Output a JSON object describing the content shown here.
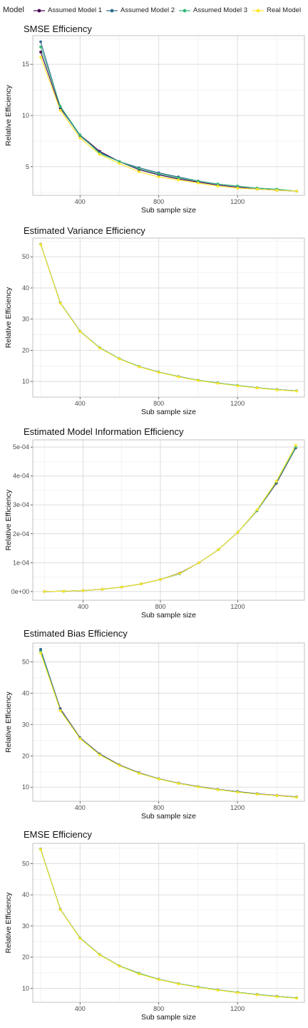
{
  "legend": {
    "title": "Model",
    "entries": [
      {
        "label": "Assumed Model 1",
        "color": "#440154"
      },
      {
        "label": "Assumed Model 2",
        "color": "#31688E"
      },
      {
        "label": "Assumed Model 3",
        "color": "#35B779"
      },
      {
        "label": "Real Model",
        "color": "#FDE725"
      }
    ]
  },
  "chart_data": [
    {
      "type": "line",
      "title": "SMSE Efficiency",
      "xlabel": "Sub sample size",
      "ylabel": "Relative Efficiency",
      "xlim": [
        160,
        1540
      ],
      "ylim": [
        2.2,
        17.8
      ],
      "xticks": [
        400,
        800,
        1200
      ],
      "yticks": [
        5,
        10,
        15
      ],
      "ytick_labels": [
        "5",
        "10",
        "15"
      ],
      "grid": true,
      "x": [
        200,
        300,
        400,
        500,
        600,
        700,
        800,
        900,
        1000,
        1100,
        1200,
        1300,
        1400,
        1500
      ],
      "series": [
        {
          "name": "Assumed Model 1",
          "values": [
            16.2,
            10.7,
            8.1,
            6.5,
            5.5,
            4.7,
            4.2,
            3.8,
            3.5,
            3.2,
            3.0,
            2.8,
            2.7,
            2.6
          ]
        },
        {
          "name": "Assumed Model 2",
          "values": [
            17.2,
            10.8,
            8.0,
            6.4,
            5.5,
            4.9,
            4.4,
            4.0,
            3.6,
            3.3,
            3.1,
            2.9,
            2.8,
            2.6
          ]
        },
        {
          "name": "Assumed Model 3",
          "values": [
            16.7,
            10.9,
            8.1,
            6.3,
            5.5,
            4.8,
            4.3,
            3.9,
            3.6,
            3.3,
            3.1,
            2.9,
            2.8,
            2.6
          ]
        },
        {
          "name": "Real Model",
          "values": [
            15.7,
            10.5,
            7.8,
            6.2,
            5.3,
            4.5,
            4.0,
            3.7,
            3.4,
            3.1,
            2.9,
            2.8,
            2.7,
            2.6
          ]
        }
      ]
    },
    {
      "type": "line",
      "title": "Estimated Variance Efficiency",
      "xlabel": "Sub sample size",
      "ylabel": "Relative Efficiency",
      "xlim": [
        160,
        1540
      ],
      "ylim": [
        5.0,
        56.0
      ],
      "xticks": [
        400,
        800,
        1200
      ],
      "yticks": [
        10,
        20,
        30,
        40,
        50
      ],
      "ytick_labels": [
        "10",
        "20",
        "30",
        "40",
        "50"
      ],
      "grid": true,
      "x": [
        200,
        300,
        400,
        500,
        600,
        700,
        800,
        900,
        1000,
        1100,
        1200,
        1300,
        1400,
        1500
      ],
      "series": [
        {
          "name": "Assumed Model 1",
          "values": [
            54.0,
            35.2,
            26.1,
            20.8,
            17.3,
            14.8,
            13.0,
            11.6,
            10.4,
            9.5,
            8.7,
            8.0,
            7.4,
            7.0
          ]
        },
        {
          "name": "Assumed Model 2",
          "values": [
            54.0,
            35.2,
            26.1,
            20.8,
            17.3,
            14.8,
            13.0,
            11.6,
            10.4,
            9.5,
            8.7,
            8.0,
            7.4,
            7.0
          ]
        },
        {
          "name": "Assumed Model 3",
          "values": [
            54.0,
            35.2,
            26.1,
            20.8,
            17.3,
            14.8,
            13.0,
            11.6,
            10.4,
            9.5,
            8.7,
            8.0,
            7.4,
            7.0
          ]
        },
        {
          "name": "Real Model",
          "values": [
            53.9,
            35.1,
            26.0,
            20.7,
            17.2,
            14.7,
            12.9,
            11.5,
            10.3,
            9.4,
            8.6,
            7.9,
            7.3,
            6.9
          ]
        }
      ]
    },
    {
      "type": "line",
      "title": "Estimated Model Information Efficiency",
      "xlabel": "Sub sample size",
      "ylabel": "Relative Efficiency",
      "xlim": [
        140,
        1545
      ],
      "ylim": [
        -3e-05,
        0.000525
      ],
      "xticks": [
        400,
        800,
        1200
      ],
      "yticks": [
        0,
        0.0001,
        0.0002,
        0.0003,
        0.0004,
        0.0005
      ],
      "ytick_labels": [
        "0e+00",
        "1e-04",
        "2e-04",
        "3e-04",
        "4e-04",
        "5e-04"
      ],
      "grid": true,
      "x": [
        200,
        300,
        400,
        500,
        600,
        700,
        800,
        900,
        1000,
        1100,
        1200,
        1300,
        1400,
        1500
      ],
      "series": [
        {
          "name": "Assumed Model 1",
          "values": [
            2e-07,
            1.2e-06,
            3.5e-06,
            8e-06,
            1.55e-05,
            2.65e-05,
            4.2e-05,
            6.4e-05,
            0.0001,
            0.000145,
            0.000205,
            0.00028,
            0.000375,
            0.000497
          ]
        },
        {
          "name": "Assumed Model 2",
          "values": [
            2e-07,
            1.2e-06,
            3.5e-06,
            8e-06,
            1.55e-05,
            2.65e-05,
            4.2e-05,
            6.2e-05,
            0.0001,
            0.000145,
            0.000205,
            0.000282,
            0.000378,
            0.000498
          ]
        },
        {
          "name": "Assumed Model 3",
          "values": [
            2e-07,
            1.2e-06,
            3.5e-06,
            8e-06,
            1.55e-05,
            2.65e-05,
            4.2e-05,
            6.2e-05,
            0.0001,
            0.000145,
            0.000205,
            0.00028,
            0.000378,
            0.0005
          ]
        },
        {
          "name": "Real Model",
          "values": [
            2e-07,
            1.2e-06,
            3.5e-06,
            8e-06,
            1.55e-05,
            2.65e-05,
            4.2e-05,
            6.3e-05,
            0.0001,
            0.000145,
            0.000205,
            0.000283,
            0.000382,
            0.000506
          ]
        }
      ]
    },
    {
      "type": "line",
      "title": "Estimated Bias Efficiency",
      "xlabel": "Sub sample size",
      "ylabel": "Relative Efficiency",
      "xlim": [
        160,
        1540
      ],
      "ylim": [
        5.5,
        56.0
      ],
      "xticks": [
        400,
        800,
        1200
      ],
      "yticks": [
        10,
        20,
        30,
        40,
        50
      ],
      "ytick_labels": [
        "10",
        "20",
        "30",
        "40",
        "50"
      ],
      "grid": true,
      "x": [
        200,
        300,
        400,
        500,
        600,
        700,
        800,
        900,
        1000,
        1100,
        1200,
        1300,
        1400,
        1500
      ],
      "series": [
        {
          "name": "Assumed Model 1",
          "values": [
            53.8,
            35.0,
            25.8,
            20.6,
            17.1,
            14.6,
            12.7,
            11.3,
            10.2,
            9.3,
            8.6,
            7.9,
            7.4,
            6.9
          ]
        },
        {
          "name": "Assumed Model 2",
          "values": [
            54.0,
            34.8,
            25.7,
            20.5,
            17.0,
            14.5,
            12.7,
            11.3,
            10.2,
            9.3,
            8.5,
            7.9,
            7.3,
            6.9
          ]
        },
        {
          "name": "Assumed Model 3",
          "values": [
            53.3,
            34.6,
            25.6,
            20.4,
            17.0,
            14.5,
            12.6,
            11.2,
            10.1,
            9.2,
            8.5,
            7.8,
            7.3,
            6.8
          ]
        },
        {
          "name": "Real Model",
          "values": [
            52.8,
            34.4,
            25.5,
            20.3,
            16.9,
            14.4,
            12.6,
            11.2,
            10.1,
            9.2,
            8.4,
            7.8,
            7.3,
            6.8
          ]
        }
      ]
    },
    {
      "type": "line",
      "title": "EMSE Efficiency",
      "xlabel": "Sub sample size",
      "ylabel": "Relative Efficiency",
      "xlim": [
        160,
        1540
      ],
      "ylim": [
        5.5,
        56.5
      ],
      "xticks": [
        400,
        800,
        1200
      ],
      "yticks": [
        10,
        20,
        30,
        40,
        50
      ],
      "ytick_labels": [
        "10",
        "20",
        "30",
        "40",
        "50"
      ],
      "grid": true,
      "x": [
        200,
        300,
        400,
        500,
        600,
        700,
        800,
        900,
        1000,
        1100,
        1200,
        1300,
        1400,
        1500
      ],
      "series": [
        {
          "name": "Assumed Model 1",
          "values": [
            54.6,
            35.3,
            26.1,
            20.8,
            17.2,
            14.8,
            12.9,
            11.5,
            10.4,
            9.5,
            8.7,
            8.0,
            7.4,
            6.9
          ]
        },
        {
          "name": "Assumed Model 2",
          "values": [
            54.6,
            35.3,
            26.1,
            20.8,
            17.2,
            14.8,
            12.9,
            11.5,
            10.4,
            9.5,
            8.7,
            8.0,
            7.4,
            6.9
          ]
        },
        {
          "name": "Assumed Model 3",
          "values": [
            54.6,
            35.3,
            26.1,
            20.8,
            17.2,
            14.8,
            12.9,
            11.5,
            10.4,
            9.5,
            8.7,
            8.0,
            7.4,
            6.9
          ]
        },
        {
          "name": "Real Model",
          "values": [
            54.5,
            35.2,
            26.0,
            20.7,
            17.1,
            14.6,
            12.8,
            11.4,
            10.3,
            9.4,
            8.6,
            7.9,
            7.3,
            6.8
          ]
        }
      ]
    }
  ]
}
